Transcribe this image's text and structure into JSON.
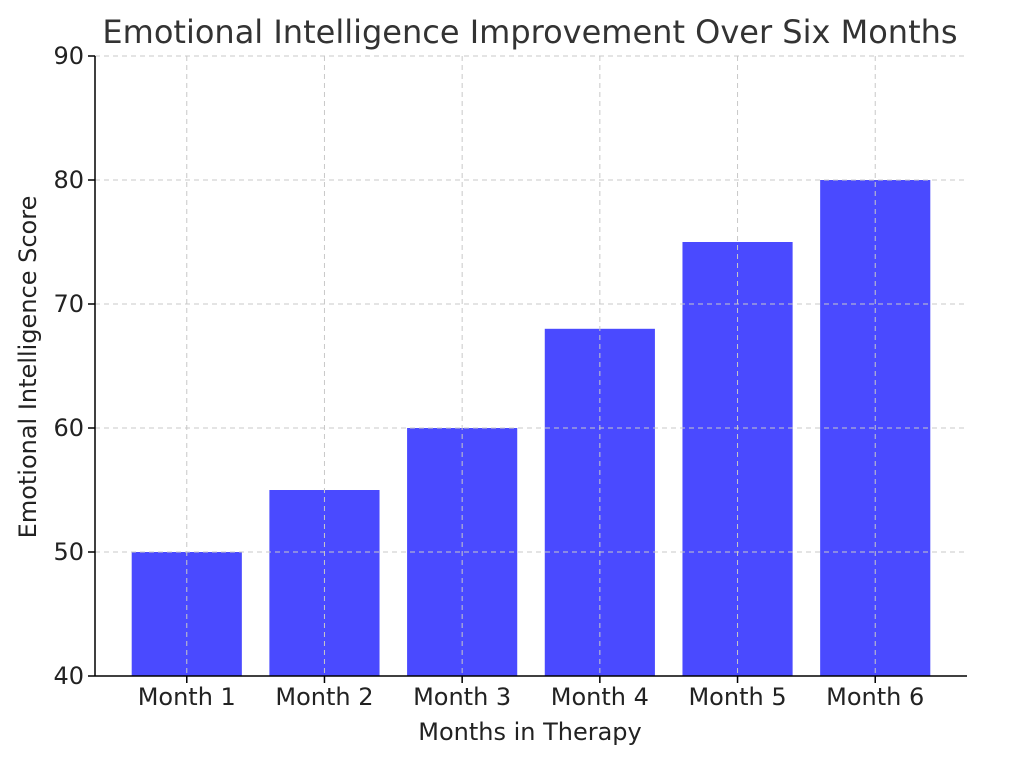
{
  "chart_data": {
    "type": "bar",
    "title": "Emotional Intelligence Improvement Over Six Months",
    "xlabel": "Months in Therapy",
    "ylabel": "Emotional Intelligence Score",
    "categories": [
      "Month 1",
      "Month 2",
      "Month 3",
      "Month 4",
      "Month 5",
      "Month 6"
    ],
    "values": [
      50,
      55,
      60,
      68,
      75,
      80
    ],
    "ylim": [
      40,
      90
    ],
    "yticks": [
      40,
      50,
      60,
      70,
      80,
      90
    ],
    "grid": true,
    "bar_color": "#4a4aff",
    "grid_color": "#c8c8c8"
  }
}
